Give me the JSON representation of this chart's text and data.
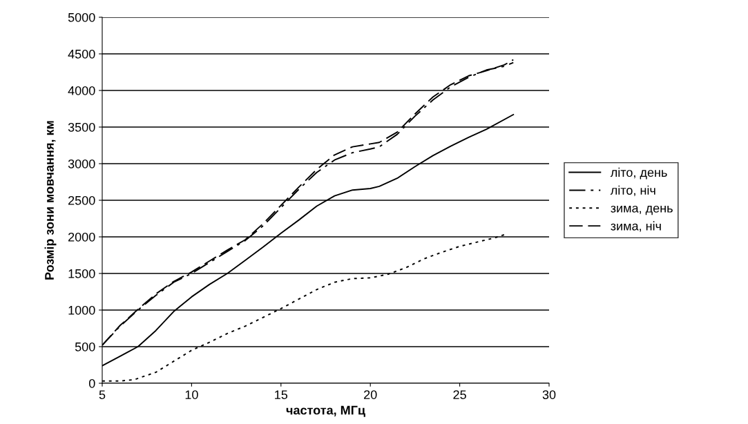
{
  "chart_data": {
    "type": "line",
    "xlabel": "частота, МГц",
    "ylabel": "Розмір зони мовчання, км",
    "xlim": [
      5,
      30
    ],
    "xticks": [
      5,
      10,
      15,
      20,
      25,
      30
    ],
    "ylim": [
      0,
      5000
    ],
    "yticks": [
      0,
      500,
      1000,
      1500,
      2000,
      2500,
      3000,
      3500,
      4000,
      4500,
      5000
    ],
    "grid": "y",
    "legend": "right",
    "marker": "none",
    "series": [
      {
        "name": "літо, день",
        "color": "#000000",
        "line_style": "solid",
        "x": [
          5,
          6,
          7,
          8,
          9,
          10,
          11,
          12,
          13,
          14,
          15,
          16,
          17,
          18,
          19,
          20,
          20.5,
          21.5,
          22.5,
          23.5,
          24.5,
          25.5,
          26.5,
          28
        ],
        "values": [
          240,
          370,
          500,
          720,
          980,
          1180,
          1350,
          1500,
          1680,
          1860,
          2050,
          2230,
          2420,
          2560,
          2640,
          2660,
          2690,
          2800,
          2960,
          3110,
          3240,
          3360,
          3470,
          3670
        ]
      },
      {
        "name": "літо, ніч",
        "color": "#000000",
        "line_style": "dashdot",
        "x": [
          5,
          6,
          7,
          8,
          9,
          10,
          11,
          12,
          13,
          14,
          15,
          16,
          17,
          18,
          19,
          20,
          20.5,
          21.5,
          22.5,
          23.5,
          24.5,
          25.5,
          26.5,
          27.5,
          28
        ],
        "values": [
          520,
          780,
          1000,
          1200,
          1380,
          1500,
          1650,
          1800,
          1950,
          2150,
          2400,
          2650,
          2880,
          3050,
          3150,
          3200,
          3230,
          3400,
          3650,
          3870,
          4050,
          4180,
          4280,
          4330,
          4380
        ]
      },
      {
        "name": "зима, день",
        "color": "#000000",
        "line_style": "dotted",
        "x": [
          5,
          6,
          6.8,
          8,
          9,
          10,
          11,
          12,
          13,
          14,
          15,
          16,
          17,
          18,
          19,
          20,
          21,
          22,
          23,
          24,
          25,
          26,
          27,
          27.5
        ],
        "values": [
          30,
          30,
          50,
          150,
          300,
          450,
          560,
          680,
          780,
          900,
          1020,
          1150,
          1280,
          1380,
          1430,
          1440,
          1490,
          1580,
          1700,
          1790,
          1870,
          1930,
          1990,
          2030
        ]
      },
      {
        "name": "зима, ніч",
        "color": "#000000",
        "line_style": "dashed",
        "x": [
          5,
          6,
          7,
          8,
          9,
          10,
          11,
          12,
          13,
          14,
          15,
          16,
          17,
          18,
          19,
          20,
          20.5,
          21.5,
          22.5,
          23.5,
          24.5,
          25.5,
          26.5,
          27.5,
          28
        ],
        "values": [
          520,
          790,
          1010,
          1220,
          1390,
          1520,
          1670,
          1820,
          1960,
          2180,
          2430,
          2680,
          2920,
          3120,
          3230,
          3270,
          3290,
          3430,
          3680,
          3910,
          4080,
          4200,
          4270,
          4350,
          4420
        ]
      }
    ]
  }
}
